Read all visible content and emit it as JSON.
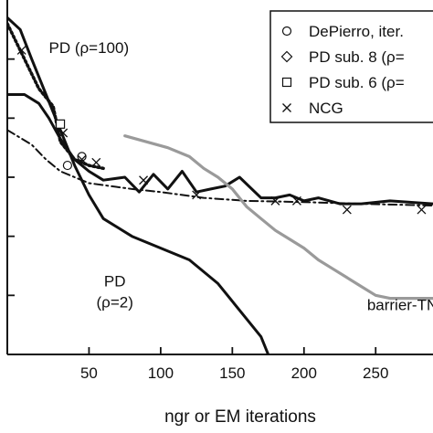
{
  "chart_data": {
    "type": "line",
    "xlabel": "ngr or EM iterations",
    "ylabel": "",
    "title": "",
    "xlim": [
      -7,
      290
    ],
    "ylim": [
      0,
      6
    ],
    "x_ticks": [
      50,
      100,
      150,
      200,
      250
    ],
    "x_tick_labels": [
      "50",
      "100",
      "150",
      "200",
      "250"
    ],
    "y_ticks": [
      1,
      2,
      3,
      4,
      5
    ],
    "grid": false,
    "legend": {
      "position": "top-right",
      "entries": [
        {
          "label": "DePierro, iter.",
          "marker": "circle"
        },
        {
          "label": "PD sub. 8 (ρ=",
          "marker": "diamond"
        },
        {
          "label": "PD sub. 6 (ρ=",
          "marker": "square"
        },
        {
          "label": "NCG",
          "marker": "x"
        }
      ]
    },
    "series": [
      {
        "key": "pd_rho2",
        "style": "solid",
        "color": "#111111",
        "x": [
          -7,
          2,
          10,
          20,
          30,
          40,
          50,
          60,
          80,
          100,
          120,
          140,
          150,
          160,
          170,
          175
        ],
        "y": [
          5.7,
          5.5,
          5.0,
          4.4,
          3.8,
          3.2,
          2.7,
          2.3,
          2.0,
          1.8,
          1.6,
          1.2,
          0.9,
          0.6,
          0.3,
          0.0
        ]
      },
      {
        "key": "pd_rho100",
        "style": "dotted",
        "color": "#111111",
        "x": [
          -7,
          5,
          15,
          25,
          30,
          40,
          50,
          60
        ],
        "y": [
          5.6,
          5.0,
          4.5,
          4.2,
          3.6,
          3.3,
          3.2,
          3.15
        ]
      },
      {
        "key": "pd_sub8",
        "style": "solid",
        "color": "#111111",
        "x": [
          -7,
          5,
          15,
          22,
          30,
          40,
          50,
          60,
          75,
          85,
          95,
          105,
          115,
          125,
          135,
          145,
          155,
          170,
          180,
          190,
          200,
          210,
          225,
          240,
          260,
          290
        ],
        "y": [
          4.4,
          4.4,
          4.25,
          4.0,
          3.65,
          3.3,
          3.1,
          2.95,
          3.0,
          2.75,
          3.05,
          2.8,
          3.1,
          2.75,
          2.8,
          2.85,
          3.0,
          2.65,
          2.65,
          2.7,
          2.6,
          2.65,
          2.55,
          2.55,
          2.6,
          2.55
        ]
      },
      {
        "key": "dashdot",
        "style": "dash-dot",
        "color": "#111111",
        "x": [
          -7,
          10,
          20,
          30,
          50,
          80,
          100,
          130,
          160,
          200,
          240,
          290
        ],
        "y": [
          3.8,
          3.55,
          3.3,
          3.1,
          2.9,
          2.8,
          2.75,
          2.65,
          2.6,
          2.58,
          2.55,
          2.52
        ]
      },
      {
        "key": "barrier_tn",
        "style": "solid",
        "color": "#9a9a9a",
        "x": [
          75,
          90,
          105,
          120,
          130,
          140,
          150,
          160,
          170,
          180,
          190,
          200,
          210,
          220,
          230,
          240,
          250,
          260,
          270,
          290
        ],
        "y": [
          3.7,
          3.6,
          3.5,
          3.35,
          3.15,
          3.0,
          2.8,
          2.5,
          2.3,
          2.1,
          1.95,
          1.8,
          1.6,
          1.45,
          1.3,
          1.15,
          1.0,
          0.95,
          0.95,
          0.95
        ]
      }
    ],
    "markers": [
      {
        "series": "DePierro, iter.",
        "shape": "circle",
        "x": [
          35,
          45
        ],
        "y": [
          3.2,
          3.35
        ]
      },
      {
        "series": "PD sub. 6 (ρ=",
        "shape": "square",
        "x": [
          30
        ],
        "y": [
          3.9
        ]
      },
      {
        "series": "NCG",
        "shape": "x",
        "x": [
          3,
          32,
          45,
          55,
          88,
          125,
          180,
          195,
          230,
          282
        ],
        "y": [
          5.15,
          3.75,
          3.3,
          3.25,
          2.95,
          2.7,
          2.6,
          2.6,
          2.45,
          2.45
        ]
      }
    ],
    "annotations": [
      {
        "text": "PD (ρ=100)",
        "x": 22,
        "y": 5.1
      },
      {
        "text": "PD",
        "x": 68,
        "y": 1.15
      },
      {
        "text": "(ρ=2)",
        "x": 68,
        "y": 0.8
      },
      {
        "text": "barrier-TN",
        "x": 244,
        "y": 0.75
      }
    ]
  }
}
